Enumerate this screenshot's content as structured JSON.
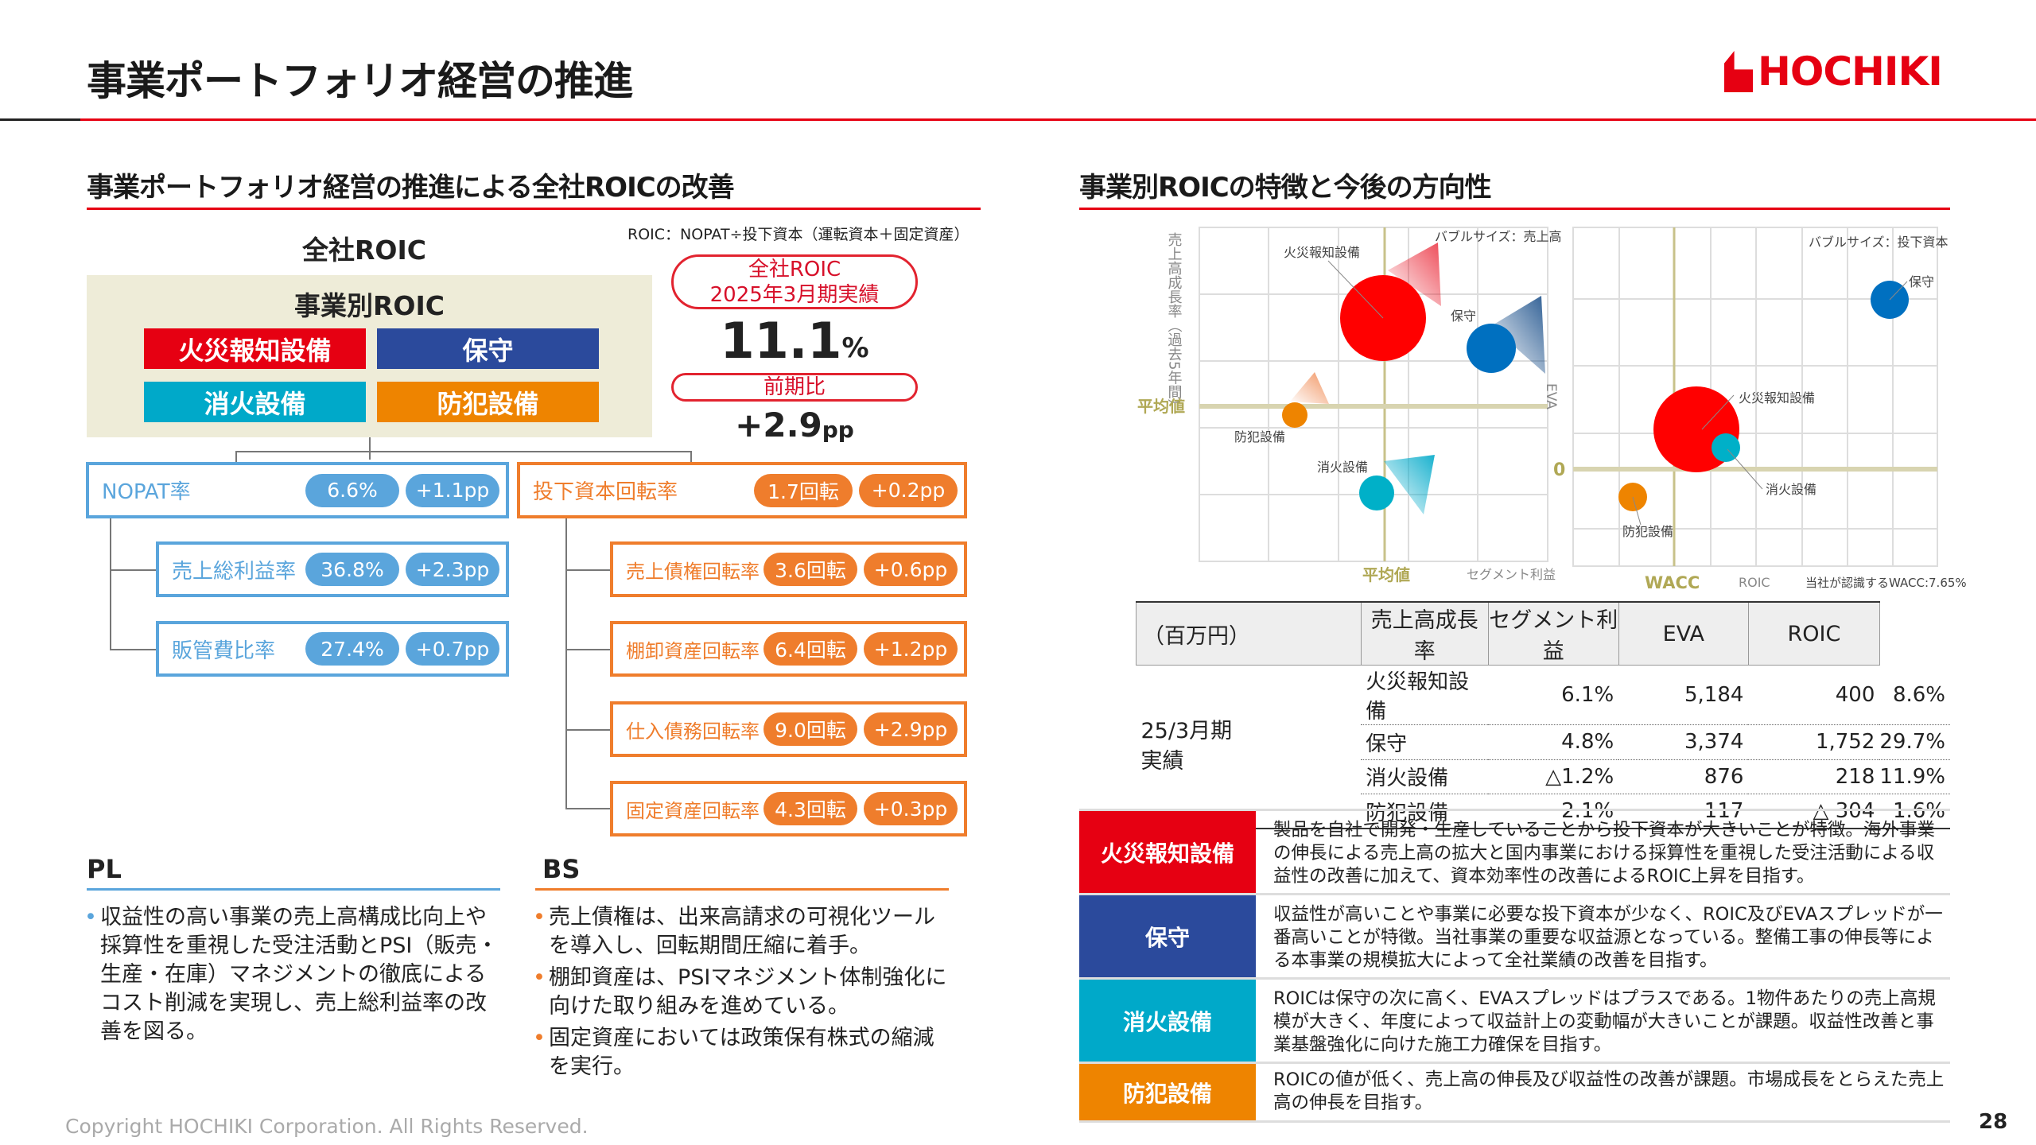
{
  "header": {
    "title": "事業ポートフォリオ経営の推進",
    "logo_text": "HOCHIKI"
  },
  "left": {
    "heading": "事業ポートフォリオ経営の推進による全社ROICの改善",
    "company_roic_label": "全社ROIC",
    "formula": "ROIC：NOPAT÷投下資本（運転資本＋固定資産）",
    "segment_box_title": "事業別ROIC",
    "segments": [
      {
        "label": "火災報知設備",
        "color": "#e60012"
      },
      {
        "label": "保守",
        "color": "#2b4a9c"
      },
      {
        "label": "消火設備",
        "color": "#00a9c9"
      },
      {
        "label": "防犯設備",
        "color": "#ee8400"
      }
    ],
    "result_pill_line1": "全社ROIC",
    "result_pill_line2": "2025年3月期実績",
    "roic_value": "11.1",
    "roic_unit": "%",
    "yoy_pill": "前期比",
    "yoy_value": "+2.9",
    "yoy_unit": "pp",
    "nopat": {
      "label": "NOPAT率",
      "value": "6.6%",
      "change": "+1.1pp"
    },
    "nopat_children": [
      {
        "label": "売上総利益率",
        "value": "36.8%",
        "change": "+2.3pp"
      },
      {
        "label": "販管費比率",
        "value": "27.4%",
        "change": "+0.7pp"
      }
    ],
    "turnover": {
      "label": "投下資本回転率",
      "value": "1.7回転",
      "change": "+0.2pp"
    },
    "turnover_children": [
      {
        "label": "売上債権回転率",
        "value": "3.6回転",
        "change": "+0.6pp"
      },
      {
        "label": "棚卸資産回転率",
        "value": "6.4回転",
        "change": "+1.2pp"
      },
      {
        "label": "仕入債務回転率",
        "value": "9.0回転",
        "change": "+2.9pp"
      },
      {
        "label": "固定資産回転率",
        "value": "4.3回転",
        "change": "+0.3pp"
      }
    ],
    "pl": {
      "heading": "PL",
      "bullets": [
        "収益性の高い事業の売上高構成比向上や採算性を重視した受注活動とPSI（販売・生産・在庫）マネジメントの徹底によるコスト削減を実現し、売上総利益率の改善を図る。"
      ]
    },
    "bs": {
      "heading": "BS",
      "bullets": [
        "売上債権は、出来高請求の可視化ツールを導入し、回転期間圧縮に着手。",
        "棚卸資産は、PSIマネジメント体制強化に向けた取り組みを進めている。",
        "固定資産においては政策保有株式の縮減を実行。"
      ]
    }
  },
  "right": {
    "heading": "事業別ROICの特徴と今後の方向性",
    "chart1": {
      "y_label": "売上高成長率（過去5年間）",
      "x_label": "セグメント利益",
      "avg_label_y": "平均値",
      "avg_label_x": "平均値",
      "bubble_note": "バブルサイズ：売上高",
      "right_axis_label": "EVA",
      "labels": [
        "火災報知設備",
        "保守",
        "防犯設備",
        "消火設備"
      ]
    },
    "chart2": {
      "zero_label": "0",
      "wacc_label": "WACC",
      "x_label": "ROIC",
      "wacc_note": "当社が認識するWACC:7.65%",
      "bubble_note": "バブルサイズ：投下資本",
      "labels": [
        "保守",
        "火災報知設備",
        "消火設備",
        "防犯設備"
      ]
    },
    "table": {
      "headers": [
        "（百万円）",
        "売上高成長率",
        "セグメント利益",
        "EVA",
        "ROIC"
      ],
      "period": "25/3月期",
      "period2": "実績",
      "rows": [
        [
          "火災報知設備",
          "6.1%",
          "5,184",
          "400",
          "8.6%"
        ],
        [
          "保守",
          "4.8%",
          "3,374",
          "1,752",
          "29.7%"
        ],
        [
          "消火設備",
          "△1.2%",
          "876",
          "218",
          "11.9%"
        ],
        [
          "防犯設備",
          "2.1%",
          "117",
          "△ 304",
          "1.6%"
        ]
      ]
    },
    "descriptions": [
      {
        "label": "火災報知設備",
        "color": "#e60012",
        "text": "製品を自社で開発・生産していることから投下資本が大きいことが特徴。海外事業の伸長による売上高の拡大と国内事業における採算性を重視した受注活動による収益性の改善に加えて、資本効率性の改善によるROIC上昇を目指す。"
      },
      {
        "label": "保守",
        "color": "#2b4a9c",
        "text": "収益性が高いことや事業に必要な投下資本が少なく、ROIC及びEVAスプレッドが一番高いことが特徴。当社事業の重要な収益源となっている。整備工事の伸長等による本事業の規模拡大によって全社業績の改善を目指す。"
      },
      {
        "label": "消火設備",
        "color": "#00a9c9",
        "text": "ROICは保守の次に高く、EVAスプレッドはプラスである。1物件あたりの売上高規模が大きく、年度によって収益計上の変動幅が大きいことが課題。収益性改善と事業基盤強化に向けた施工力確保を目指す。"
      },
      {
        "label": "防犯設備",
        "color": "#ee8400",
        "text": "ROICの値が低く、売上高の伸長及び収益性の改善が課題。市場成長をとらえた売上高の伸長を目指す。"
      }
    ]
  },
  "footer": {
    "copyright": "Copyright HOCHIKI Corporation. All Rights Reserved.",
    "page": "28"
  }
}
